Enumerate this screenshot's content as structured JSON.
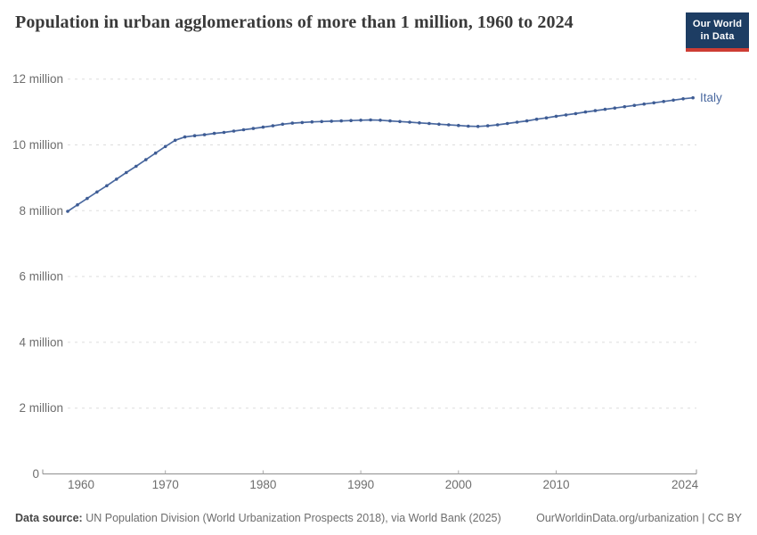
{
  "header": {
    "title": "Population in urban agglomerations of more than 1 million, 1960 to 2024",
    "logo": {
      "line1": "Our World",
      "line2": "in Data"
    }
  },
  "chart_data": {
    "type": "line",
    "title": "Population in urban agglomerations of more than 1 million, 1960 to 2024",
    "unit": "people",
    "xlim": [
      1960,
      2024
    ],
    "ylim_millions": [
      0,
      12
    ],
    "grid": "horizontal dashed",
    "legend_position": "end-of-line label",
    "x_tick_labels": [
      "1960",
      "1970",
      "1980",
      "1990",
      "2000",
      "2010",
      "2024"
    ],
    "x_tick_years": [
      1960,
      1970,
      1980,
      1990,
      2000,
      2010,
      2024
    ],
    "y_ticks": [
      {
        "value": 0,
        "label": "0"
      },
      {
        "value": 2,
        "label": "2 million"
      },
      {
        "value": 4,
        "label": "4 million"
      },
      {
        "value": 6,
        "label": "6 million"
      },
      {
        "value": 8,
        "label": "8 million"
      },
      {
        "value": 10,
        "label": "10 million"
      },
      {
        "value": 12,
        "label": "12 million"
      }
    ],
    "series": [
      {
        "name": "Italy",
        "x": [
          1960,
          1961,
          1962,
          1963,
          1964,
          1965,
          1966,
          1967,
          1968,
          1969,
          1970,
          1971,
          1972,
          1973,
          1974,
          1975,
          1976,
          1977,
          1978,
          1979,
          1980,
          1981,
          1982,
          1983,
          1984,
          1985,
          1986,
          1987,
          1988,
          1989,
          1990,
          1991,
          1992,
          1993,
          1994,
          1995,
          1996,
          1997,
          1998,
          1999,
          2000,
          2001,
          2002,
          2003,
          2004,
          2005,
          2006,
          2007,
          2008,
          2009,
          2010,
          2011,
          2012,
          2013,
          2014,
          2015,
          2016,
          2017,
          2018,
          2019,
          2020,
          2021,
          2022,
          2023,
          2024
        ],
        "values_millions": [
          7.98,
          8.18,
          8.37,
          8.57,
          8.76,
          8.96,
          9.16,
          9.35,
          9.55,
          9.75,
          9.95,
          10.14,
          10.24,
          10.28,
          10.31,
          10.35,
          10.38,
          10.42,
          10.46,
          10.5,
          10.54,
          10.58,
          10.63,
          10.66,
          10.68,
          10.7,
          10.71,
          10.72,
          10.73,
          10.74,
          10.75,
          10.76,
          10.75,
          10.73,
          10.71,
          10.69,
          10.67,
          10.65,
          10.63,
          10.61,
          10.59,
          10.57,
          10.56,
          10.58,
          10.61,
          10.65,
          10.69,
          10.73,
          10.78,
          10.82,
          10.87,
          10.91,
          10.95,
          11.0,
          11.04,
          11.08,
          11.12,
          11.16,
          11.2,
          11.24,
          11.28,
          11.32,
          11.36,
          11.4,
          11.43
        ]
      }
    ],
    "colors": {
      "line": "#4a69a0",
      "marker": "#3e5c94",
      "series_label": "#4a69a0",
      "grid": "#dddddd",
      "axis": "#8f8f8f",
      "tick_text": "#6e6e6e"
    }
  },
  "footer": {
    "source_label": "Data source:",
    "source_text": "UN Population Division (World Urbanization Prospects 2018), via World Bank (2025)",
    "credit": "OurWorldinData.org/urbanization | CC BY"
  }
}
